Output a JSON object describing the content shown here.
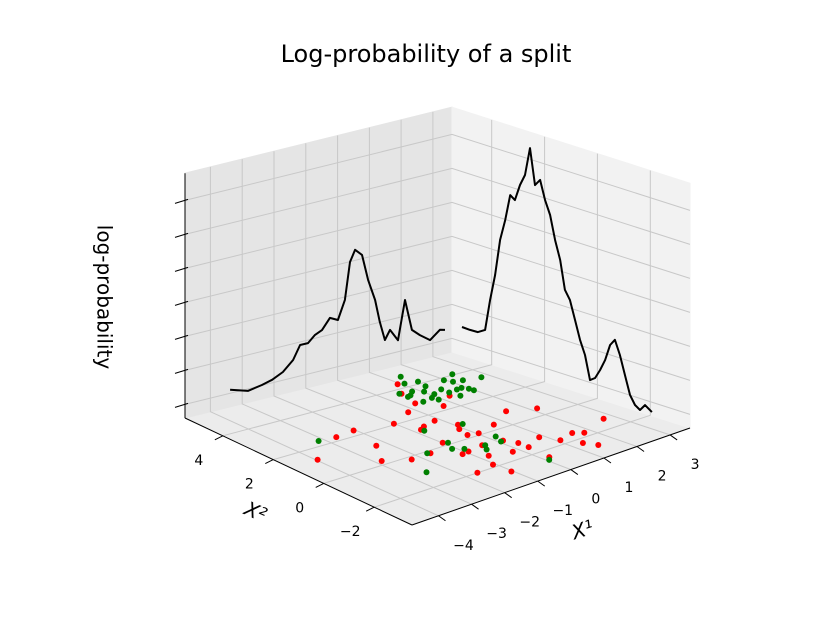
{
  "chart_data": {
    "type": "scatter3d",
    "title": "Log-probability of a split",
    "xlabel": "X¹",
    "ylabel": "X²",
    "zlabel": "log-probability",
    "xlim": [
      -4.8,
      3.6
    ],
    "ylim": [
      -3.5,
      5.5
    ],
    "zlim": [
      -0.4,
      6.8
    ],
    "xticks": [
      {
        "value": -4,
        "label": "−4"
      },
      {
        "value": -3,
        "label": "−3"
      },
      {
        "value": -2,
        "label": "−2"
      },
      {
        "value": -1,
        "label": "−1"
      },
      0,
      1,
      2,
      3
    ],
    "yticks": [
      {
        "value": -2,
        "label": "−2"
      },
      0,
      2,
      4
    ],
    "zticks": [
      0,
      1,
      2,
      3,
      4,
      5,
      6
    ],
    "grid": true,
    "series": [
      {
        "color": "#ff0000",
        "x": [
          -3.96,
          -2.66,
          -2.05,
          -2.3,
          -2.84,
          -1.01,
          0.92,
          0.53,
          -0.23,
          -2.24,
          0.31,
          -0.8,
          -1.65,
          -0.15,
          -0.99,
          0.69,
          1.29,
          0.07,
          -1.13,
          -0.22,
          -1.66,
          -0.42,
          -0.76,
          -1.06,
          0.69,
          0.13,
          1.51,
          -1.04,
          -0.19,
          0.28,
          0.27,
          2.16,
          0.87,
          0.18,
          1.08,
          1.59,
          1.32,
          1.47,
          2.73,
          1.79,
          -0.6,
          0.05,
          -0.1,
          -0.92
        ],
        "y": [
          1.32,
          2.24,
          2.33,
          1.13,
          0.23,
          2.07,
          4.32,
          3.69,
          2.49,
          -0.18,
          2.89,
          1.28,
          -0.16,
          1.57,
          0.2,
          2.27,
          2.78,
          0.94,
          -0.75,
          0.21,
          -2.0,
          -0.61,
          -1.29,
          -1.84,
          0.34,
          -0.72,
          0.89,
          -2.53,
          -1.5,
          -1.12,
          -1.53,
          0.51,
          -1.18,
          -2.44,
          -1.73,
          -1.54,
          -2.29,
          -2.69,
          -1.31,
          -1.75,
          1.42,
          0.12,
          0.68,
          -0.71
        ]
      },
      {
        "color": "#008000",
        "x": [
          -3.16,
          1.36,
          1.08,
          0.61,
          0.83,
          1.43,
          0.53,
          1.04,
          1.33,
          0.87,
          1.1,
          0.91,
          1.45,
          1.96,
          1.44,
          2.41,
          2.04,
          1.72,
          1.88,
          1.97,
          1.98,
          2.76,
          -2.51,
          -1.71,
          -0.9,
          -1.09,
          -0.88,
          0.19,
          -0.37,
          -0.53,
          0.19,
          0.06,
          -0.78,
          1.48,
          2.29,
          0.06,
          0.49,
          0.49
        ],
        "y": [
          2.3,
          4.74,
          4.25,
          3.44,
          3.65,
          4.16,
          2.85,
          3.45,
          3.75,
          2.94,
          3.13,
          2.73,
          3.3,
          3.82,
          2.98,
          4.05,
          3.57,
          3.03,
          3.05,
          2.88,
          2.7,
          3.37,
          -1.1,
          -0.11,
          0.11,
          -0.29,
          -0.5,
          0.91,
          -0.66,
          -0.92,
          -0.36,
          -0.73,
          1.18,
          2.6,
          3.5,
          -2.59,
          3.39,
          3.72
        ]
      }
    ],
    "lines": [
      {
        "color": "#000000",
        "x": [
          -3.38,
          -2.82,
          -2.38,
          -2.06,
          -1.72,
          -1.4,
          -1.18,
          -0.93,
          -0.71,
          -0.49,
          -0.24,
          0.01,
          0.23,
          0.39,
          0.55,
          0.77,
          0.96,
          1.18,
          1.33,
          1.49,
          1.65,
          1.9,
          2.12,
          2.34,
          2.59,
          2.91,
          3.22,
          3.38
        ],
        "z": [
          0.1,
          -0.06,
          0.01,
          0.09,
          0.24,
          0.52,
          0.91,
          0.91,
          1.1,
          1.19,
          1.49,
          1.37,
          1.91,
          2.99,
          3.31,
          3.11,
          2.33,
          1.69,
          1.01,
          0.44,
          0.7,
          0.34,
          1.47,
          0.54,
          0.33,
          0.11,
          0.34,
          0.3
        ]
      },
      {
        "color": "#000000",
        "y": [
          5.12,
          4.82,
          4.52,
          4.25,
          4.06,
          3.87,
          3.68,
          3.49,
          3.3,
          3.12,
          2.93,
          2.74,
          2.55,
          2.36,
          2.17,
          1.98,
          1.79,
          1.6,
          1.41,
          1.23,
          1.04,
          0.85,
          0.66,
          0.47,
          0.28,
          0.09,
          -0.1,
          -0.29,
          -0.48,
          -0.66,
          -0.85,
          -1.04,
          -1.23,
          -1.42,
          -1.61,
          -1.8,
          -2.06
        ],
        "z": [
          0.43,
          0.42,
          0.43,
          0.56,
          1.49,
          2.27,
          3.35,
          3.98,
          4.76,
          4.66,
          5.15,
          5.49,
          6.33,
          5.29,
          5.49,
          4.94,
          4.55,
          3.86,
          3.32,
          2.49,
          2.24,
          1.7,
          1.16,
          0.76,
          0.07,
          0.18,
          0.46,
          0.8,
          1.29,
          1.49,
          1.09,
          0.55,
          0.01,
          -0.24,
          -0.34,
          -0.15,
          -0.29
        ]
      }
    ]
  }
}
